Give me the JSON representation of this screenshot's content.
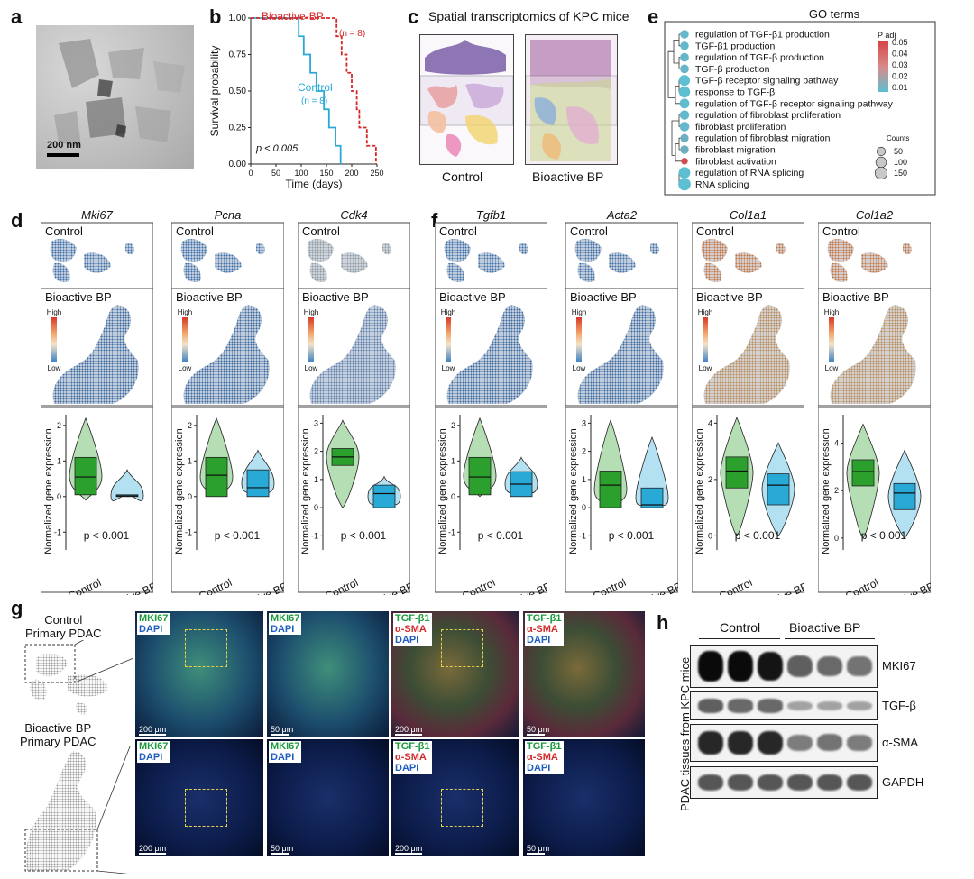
{
  "panels": {
    "a": {
      "letter": "a",
      "scale_bar": "200 nm"
    },
    "b": {
      "letter": "b"
    },
    "c": {
      "letter": "c",
      "title": "Spatial transcriptomics of KPC mice",
      "labels": [
        "Control",
        "Bioactive BP"
      ]
    },
    "d": {
      "letter": "d",
      "genes": [
        "Mki67",
        "Pcna",
        "Cdk4"
      ]
    },
    "e": {
      "letter": "e",
      "title": "GO terms"
    },
    "f": {
      "letter": "f",
      "genes": [
        "Tgfb1",
        "Acta2",
        "Col1a1",
        "Col1a2"
      ]
    },
    "g": {
      "letter": "g",
      "control_label": "Control\nPrimary PDAC",
      "bp_label": "Bioactive BP\nPrimary PDAC",
      "stains": {
        "mki67": "MKI67",
        "dapi": "DAPI",
        "tgfb1": "TGF-β1",
        "asma": "α-SMA"
      },
      "scale_200": "200 μm",
      "scale_50": "50 μm"
    },
    "h": {
      "letter": "h",
      "group_control": "Control",
      "group_bp": "Bioactive BP",
      "ylabel": "PDAC tissues from KPC mice",
      "bands": [
        "MKI67",
        "TGF-β",
        "α-SMA",
        "GAPDH"
      ]
    }
  },
  "spatial": {
    "control_label": "Control",
    "bp_label": "Bioactive BP",
    "high": "High",
    "low": "Low"
  },
  "violin_common": {
    "ylabel": "Normalized gene expression",
    "pvalue": "p < 0.001",
    "x_control": "Control",
    "x_bp": "Bioactive BP"
  },
  "chart_data": [
    {
      "type": "line",
      "panel": "b",
      "xlabel": "Time (days)",
      "ylabel": "Survival probability",
      "xlim": [
        0,
        250
      ],
      "ylim": [
        0,
        1
      ],
      "xticks": [
        0,
        50,
        100,
        150,
        200,
        250
      ],
      "yticks": [
        "0.00",
        "0.25",
        "0.50",
        "0.75",
        "1.00"
      ],
      "annotation": "p < 0.005",
      "series": [
        {
          "name": "Control",
          "n_label": "(n = 8)",
          "color": "#29a9d6",
          "x": [
            0,
            95,
            95,
            105,
            105,
            118,
            118,
            130,
            130,
            145,
            145,
            155,
            155,
            168,
            168,
            178,
            178
          ],
          "y": [
            1.0,
            1.0,
            0.875,
            0.875,
            0.75,
            0.75,
            0.625,
            0.625,
            0.5,
            0.5,
            0.375,
            0.375,
            0.25,
            0.25,
            0.125,
            0.125,
            0.0
          ]
        },
        {
          "name": "Bioactive-BP",
          "n_label": "(n = 8)",
          "color": "#d62728",
          "x": [
            0,
            170,
            170,
            180,
            180,
            190,
            190,
            200,
            200,
            210,
            210,
            215,
            215,
            230,
            230,
            248,
            248
          ],
          "y": [
            1.0,
            1.0,
            0.875,
            0.875,
            0.75,
            0.75,
            0.625,
            0.625,
            0.5,
            0.5,
            0.375,
            0.375,
            0.25,
            0.25,
            0.125,
            0.125,
            0.0
          ]
        }
      ]
    },
    {
      "type": "scatter",
      "panel": "e",
      "title": "GO terms",
      "legend_color_title": "P adj",
      "legend_color_ticks": [
        "0.05",
        "0.04",
        "0.03",
        "0.02",
        "0.01"
      ],
      "legend_size_title": "Counts",
      "legend_size_ticks": [
        50,
        100,
        150
      ],
      "terms": [
        {
          "label": "regulation of TGF-β1 production",
          "count": 50,
          "padj": 0.012
        },
        {
          "label": "TGF-β1 production",
          "count": 50,
          "padj": 0.012
        },
        {
          "label": "regulation of TGF-β production",
          "count": 55,
          "padj": 0.013
        },
        {
          "label": "TGF-β production",
          "count": 55,
          "padj": 0.013
        },
        {
          "label": "TGF-β receptor signaling pathway",
          "count": 110,
          "padj": 0.01
        },
        {
          "label": "response to TGF-β",
          "count": 120,
          "padj": 0.01
        },
        {
          "label": "regulation of TGF-β receptor signaling pathway",
          "count": 80,
          "padj": 0.011
        },
        {
          "label": "regulation of fibroblast proliferation",
          "count": 70,
          "padj": 0.012
        },
        {
          "label": "fibroblast proliferation",
          "count": 75,
          "padj": 0.012
        },
        {
          "label": "regulation of fibroblast migration",
          "count": 45,
          "padj": 0.015
        },
        {
          "label": "fibroblast migration",
          "count": 50,
          "padj": 0.015
        },
        {
          "label": "fibroblast activation",
          "count": 20,
          "padj": 0.048
        },
        {
          "label": "regulation of RNA splicing",
          "count": 130,
          "padj": 0.01
        },
        {
          "label": "RNA splicing",
          "count": 160,
          "padj": 0.01
        }
      ]
    },
    {
      "type": "violin",
      "panel": "d",
      "gene": "Mki67",
      "ylim": [
        -1.5,
        2.3
      ],
      "yticks": [
        -1,
        0,
        1,
        2
      ],
      "series": [
        {
          "name": "Control",
          "color": "#2ca02c",
          "median": 0.55,
          "q1": 0.05,
          "q3": 1.1,
          "min": -0.1,
          "max": 2.2
        },
        {
          "name": "Bioactive BP",
          "color": "#29a9d6",
          "median": 0.02,
          "q1": 0.0,
          "q3": 0.05,
          "min": 0.0,
          "max": 0.75
        }
      ]
    },
    {
      "type": "violin",
      "panel": "d",
      "gene": "Pcna",
      "ylim": [
        -1.5,
        2.3
      ],
      "yticks": [
        -1,
        0,
        1,
        2
      ],
      "series": [
        {
          "name": "Control",
          "color": "#2ca02c",
          "median": 0.6,
          "q1": 0.0,
          "q3": 1.1,
          "min": 0.0,
          "max": 2.2
        },
        {
          "name": "Bioactive BP",
          "color": "#29a9d6",
          "median": 0.25,
          "q1": 0.0,
          "q3": 0.75,
          "min": 0.0,
          "max": 1.3
        }
      ]
    },
    {
      "type": "violin",
      "panel": "d",
      "gene": "Cdk4",
      "ylim": [
        -1.5,
        3.3
      ],
      "yticks": [
        -1,
        0,
        1,
        2,
        3
      ],
      "series": [
        {
          "name": "Control",
          "color": "#2ca02c",
          "median": 1.8,
          "q1": 1.5,
          "q3": 2.1,
          "min": 0.0,
          "max": 3.1
        },
        {
          "name": "Bioactive BP",
          "color": "#29a9d6",
          "median": 0.5,
          "q1": 0.0,
          "q3": 0.8,
          "min": 0.0,
          "max": 1.1
        }
      ]
    },
    {
      "type": "violin",
      "panel": "f",
      "gene": "Tgfb1",
      "ylim": [
        -1.5,
        2.3
      ],
      "yticks": [
        -1,
        0,
        1,
        2
      ],
      "series": [
        {
          "name": "Control",
          "color": "#2ca02c",
          "median": 0.55,
          "q1": 0.05,
          "q3": 1.1,
          "min": 0.0,
          "max": 2.2
        },
        {
          "name": "Bioactive BP",
          "color": "#29a9d6",
          "median": 0.35,
          "q1": 0.0,
          "q3": 0.7,
          "min": 0.0,
          "max": 1.1
        }
      ]
    },
    {
      "type": "violin",
      "panel": "f",
      "gene": "Acta2",
      "ylim": [
        -1.5,
        3.3
      ],
      "yticks": [
        -1,
        0,
        1,
        2,
        3
      ],
      "series": [
        {
          "name": "Control",
          "color": "#2ca02c",
          "median": 0.8,
          "q1": 0.0,
          "q3": 1.3,
          "min": 0.0,
          "max": 3.1
        },
        {
          "name": "Bioactive BP",
          "color": "#29a9d6",
          "median": 0.1,
          "q1": 0.0,
          "q3": 0.7,
          "min": 0.0,
          "max": 2.5
        }
      ]
    },
    {
      "type": "violin",
      "panel": "f",
      "gene": "Col1a1",
      "ylim": [
        -0.5,
        4.3
      ],
      "yticks": [
        0,
        2,
        4
      ],
      "series": [
        {
          "name": "Control",
          "color": "#2ca02c",
          "median": 2.3,
          "q1": 1.7,
          "q3": 2.8,
          "min": 0.0,
          "max": 4.2
        },
        {
          "name": "Bioactive BP",
          "color": "#29a9d6",
          "median": 1.8,
          "q1": 1.1,
          "q3": 2.2,
          "min": 0.0,
          "max": 3.3
        }
      ]
    },
    {
      "type": "violin",
      "panel": "f",
      "gene": "Col1a2",
      "ylim": [
        -0.5,
        5.2
      ],
      "yticks": [
        0,
        2,
        4
      ],
      "series": [
        {
          "name": "Control",
          "color": "#2ca02c",
          "median": 2.8,
          "q1": 2.2,
          "q3": 3.3,
          "min": 0.0,
          "max": 4.8
        },
        {
          "name": "Bioactive BP",
          "color": "#29a9d6",
          "median": 1.9,
          "q1": 1.2,
          "q3": 2.3,
          "min": 0.0,
          "max": 3.7
        }
      ]
    }
  ]
}
